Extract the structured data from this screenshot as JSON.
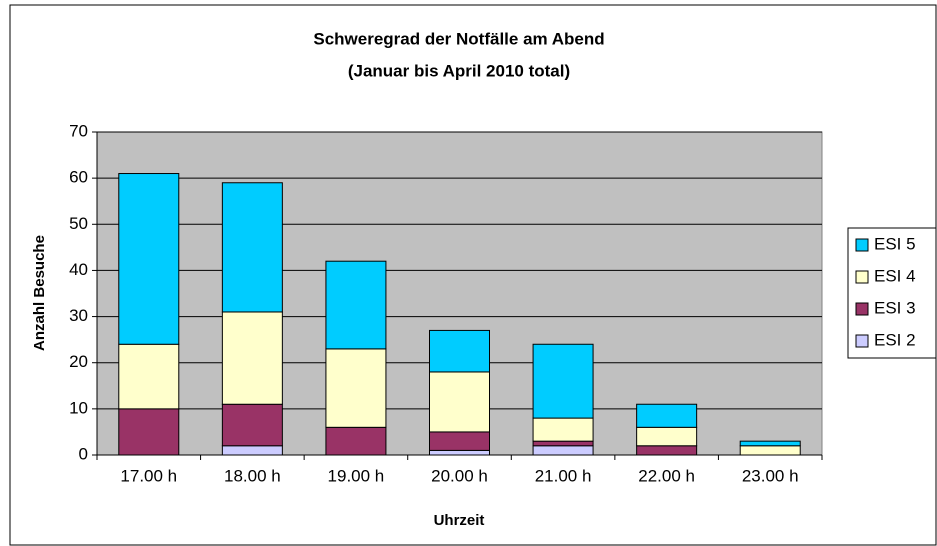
{
  "chart_data": {
    "type": "bar",
    "stacked": true,
    "title": "Schweregrad der Notfälle am Abend",
    "subtitle": "(Januar bis April 2010 total)",
    "x_label": "Uhrzeit",
    "y_label": "Anzahl Besuche",
    "categories": [
      "17.00 h",
      "18.00 h",
      "19.00 h",
      "20.00 h",
      "21.00 h",
      "22.00 h",
      "23.00 h"
    ],
    "series": [
      {
        "name": "ESI 2",
        "color": "#ccccff",
        "values": [
          0,
          2,
          0,
          1,
          2,
          0,
          0
        ]
      },
      {
        "name": "ESI 3",
        "color": "#993366",
        "values": [
          10,
          9,
          6,
          4,
          1,
          2,
          0
        ]
      },
      {
        "name": "ESI 4",
        "color": "#ffffcc",
        "values": [
          14,
          20,
          17,
          13,
          5,
          4,
          2
        ]
      },
      {
        "name": "ESI 5",
        "color": "#00ccff",
        "values": [
          37,
          28,
          19,
          9,
          16,
          5,
          1
        ]
      }
    ],
    "ylim": [
      0,
      70
    ],
    "yticks": [
      0,
      10,
      20,
      30,
      40,
      50,
      60,
      70
    ],
    "grid": true,
    "legend": "right",
    "plot_background": "#c0c0c0"
  }
}
